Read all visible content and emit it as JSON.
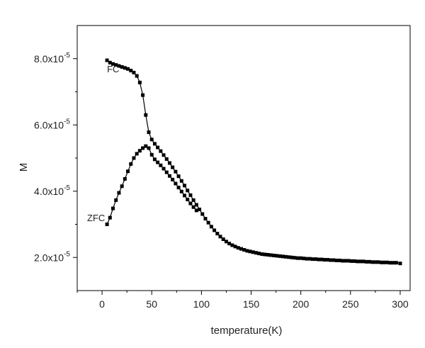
{
  "chart_data": {
    "type": "scatter",
    "title": "",
    "xlabel": "temperature(K)",
    "ylabel": "M",
    "xlim": [
      -25,
      310
    ],
    "ylim": [
      1e-05,
      9e-05
    ],
    "x_ticks": [
      {
        "value": 0,
        "label": "0"
      },
      {
        "value": 50,
        "label": "50"
      },
      {
        "value": 100,
        "label": "100"
      },
      {
        "value": 150,
        "label": "150"
      },
      {
        "value": 200,
        "label": "200"
      },
      {
        "value": 250,
        "label": "250"
      },
      {
        "value": 300,
        "label": "300"
      }
    ],
    "y_ticks": [
      {
        "value": 2e-05,
        "mantissa": "2.0x10",
        "exponent": "-5"
      },
      {
        "value": 4e-05,
        "mantissa": "4.0x10",
        "exponent": "-5"
      },
      {
        "value": 6e-05,
        "mantissa": "6.0x10",
        "exponent": "-5"
      },
      {
        "value": 8e-05,
        "mantissa": "8.0x10",
        "exponent": "-5"
      }
    ],
    "grid": false,
    "legend": "none",
    "color": "#000000",
    "series": [
      {
        "name": "FC",
        "label_at": [
          5,
          7.7e-05
        ],
        "x": [
          5,
          8,
          11,
          14,
          17,
          20,
          23,
          26,
          29,
          32,
          35,
          38,
          41,
          44,
          47,
          50,
          53,
          56,
          59,
          62,
          65,
          68,
          71,
          74,
          77,
          80,
          83,
          86,
          89,
          92,
          95,
          98,
          101,
          104,
          107,
          110,
          113,
          116,
          119,
          122,
          125,
          128,
          131,
          134,
          137,
          140,
          143,
          146,
          149,
          152,
          155,
          158,
          161,
          164,
          167,
          170,
          173,
          176,
          179,
          182,
          185,
          188,
          191,
          194,
          197,
          200,
          203,
          206,
          209,
          212,
          215,
          218,
          221,
          224,
          227,
          230,
          233,
          236,
          239,
          242,
          245,
          248,
          251,
          254,
          257,
          260,
          263,
          266,
          269,
          272,
          275,
          278,
          281,
          284,
          287,
          290,
          293,
          296,
          300
        ],
        "y": [
          7.95e-05,
          7.88e-05,
          7.84e-05,
          7.81e-05,
          7.78e-05,
          7.75e-05,
          7.72e-05,
          7.69e-05,
          7.64e-05,
          7.58e-05,
          7.48e-05,
          7.28e-05,
          6.9e-05,
          6.3e-05,
          5.78e-05,
          5.56e-05,
          5.43e-05,
          5.32e-05,
          5.21e-05,
          5.09e-05,
          4.97e-05,
          4.85e-05,
          4.72e-05,
          4.59e-05,
          4.45e-05,
          4.31e-05,
          4.17e-05,
          4.02e-05,
          3.88e-05,
          3.73e-05,
          3.59e-05,
          3.45e-05,
          3.31e-05,
          3.17e-05,
          3.05e-05,
          2.93e-05,
          2.82e-05,
          2.72e-05,
          2.63e-05,
          2.55e-05,
          2.48e-05,
          2.42e-05,
          2.37e-05,
          2.33e-05,
          2.29e-05,
          2.26e-05,
          2.23e-05,
          2.2e-05,
          2.18e-05,
          2.16e-05,
          2.14e-05,
          2.12e-05,
          2.1e-05,
          2.09e-05,
          2.08e-05,
          2.07e-05,
          2.06e-05,
          2.05e-05,
          2.04e-05,
          2.03e-05,
          2.02e-05,
          2.01e-05,
          2e-05,
          1.99e-05,
          1.98e-05,
          1.98e-05,
          1.97e-05,
          1.96e-05,
          1.96e-05,
          1.95e-05,
          1.95e-05,
          1.94e-05,
          1.94e-05,
          1.93e-05,
          1.93e-05,
          1.92e-05,
          1.92e-05,
          1.91e-05,
          1.91e-05,
          1.9e-05,
          1.9e-05,
          1.9e-05,
          1.89e-05,
          1.89e-05,
          1.88e-05,
          1.88e-05,
          1.88e-05,
          1.87e-05,
          1.87e-05,
          1.86e-05,
          1.86e-05,
          1.86e-05,
          1.85e-05,
          1.85e-05,
          1.85e-05,
          1.84e-05,
          1.84e-05,
          1.84e-05,
          1.82e-05
        ]
      },
      {
        "name": "ZFC",
        "label_at": [
          -15,
          3.2e-05
        ],
        "x": [
          5,
          8,
          11,
          14,
          17,
          20,
          23,
          26,
          29,
          32,
          35,
          38,
          41,
          44,
          47,
          50,
          53,
          56,
          59,
          62,
          65,
          68,
          71,
          74,
          77,
          80,
          83,
          86,
          89,
          92,
          95
        ],
        "y": [
          3e-05,
          3.2e-05,
          3.48e-05,
          3.73e-05,
          3.95e-05,
          4.15e-05,
          4.37e-05,
          4.6e-05,
          4.82e-05,
          5e-05,
          5.13e-05,
          5.22e-05,
          5.3e-05,
          5.36e-05,
          5.3e-05,
          5.1e-05,
          4.96e-05,
          4.87e-05,
          4.78e-05,
          4.68e-05,
          4.57e-05,
          4.46e-05,
          4.35e-05,
          4.23e-05,
          4.11e-05,
          3.99e-05,
          3.87e-05,
          3.75e-05,
          3.63e-05,
          3.52e-05,
          3.42e-05
        ]
      }
    ]
  }
}
